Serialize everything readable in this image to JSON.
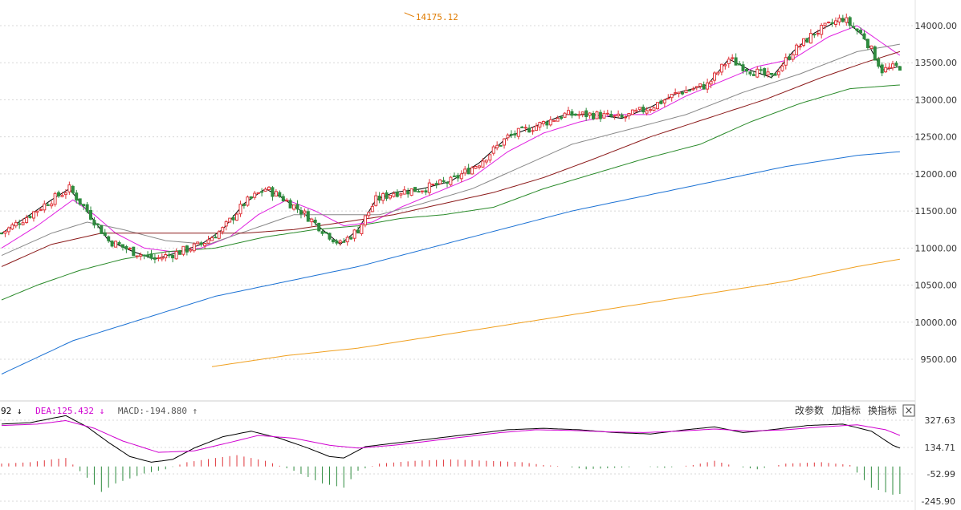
{
  "chart_data": [
    {
      "type": "candlestick",
      "ylim": [
        9000,
        14300
      ],
      "y_ticks": [
        {
          "value": 14000,
          "label": "14000.00"
        },
        {
          "value": 13500,
          "label": "13500.00"
        },
        {
          "value": 13000,
          "label": "13000.00"
        },
        {
          "value": 12500,
          "label": "12500.00"
        },
        {
          "value": 12000,
          "label": "12000.00"
        },
        {
          "value": 11500,
          "label": "11500.00"
        },
        {
          "value": 11000,
          "label": "11000.00"
        },
        {
          "value": 10500,
          "label": "10500.00"
        },
        {
          "value": 10000,
          "label": "10000.00"
        },
        {
          "value": 9500,
          "label": "9500.00"
        }
      ],
      "grid": true,
      "colors": {
        "up": "#e0353b",
        "down": "#2e8b3e"
      },
      "annotation": {
        "label": "14175.12",
        "value": 14175.12,
        "bar_index": 113,
        "color": "#e07b00"
      },
      "ma_anchors": [
        {
          "name": "ma-5",
          "color": "#000000",
          "points": [
            [
              0,
              11200
            ],
            [
              8,
              11450
            ],
            [
              14,
              11650
            ],
            [
              19,
              11800
            ],
            [
              24,
              11500
            ],
            [
              30,
              11100
            ],
            [
              37,
              10950
            ],
            [
              43,
              10850
            ],
            [
              50,
              10950
            ],
            [
              56,
              11050
            ],
            [
              62,
              11250
            ],
            [
              68,
              11600
            ],
            [
              74,
              11800
            ],
            [
              78,
              11700
            ],
            [
              84,
              11500
            ],
            [
              90,
              11250
            ],
            [
              95,
              11050
            ],
            [
              100,
              11250
            ],
            [
              105,
              11650
            ],
            [
              110,
              11750
            ],
            [
              118,
              11800
            ],
            [
              126,
              11900
            ],
            [
              134,
              12150
            ],
            [
              142,
              12500
            ],
            [
              150,
              12650
            ],
            [
              158,
              12800
            ],
            [
              166,
              12800
            ],
            [
              174,
              12750
            ],
            [
              182,
              12900
            ],
            [
              190,
              13100
            ],
            [
              198,
              13200
            ],
            [
              204,
              13550
            ],
            [
              210,
              13400
            ],
            [
              216,
              13300
            ],
            [
              222,
              13650
            ],
            [
              228,
              13900
            ],
            [
              236,
              14100
            ],
            [
              242,
              13850
            ],
            [
              247,
              13400
            ],
            [
              252,
              13450
            ]
          ]
        },
        {
          "name": "ma-10",
          "color": "#e020e0",
          "points": [
            [
              0,
              11000
            ],
            [
              10,
              11300
            ],
            [
              20,
              11650
            ],
            [
              26,
              11450
            ],
            [
              32,
              11200
            ],
            [
              40,
              11000
            ],
            [
              48,
              10950
            ],
            [
              56,
              11000
            ],
            [
              64,
              11150
            ],
            [
              72,
              11450
            ],
            [
              80,
              11650
            ],
            [
              88,
              11500
            ],
            [
              96,
              11300
            ],
            [
              104,
              11350
            ],
            [
              112,
              11550
            ],
            [
              122,
              11750
            ],
            [
              132,
              11950
            ],
            [
              142,
              12300
            ],
            [
              152,
              12550
            ],
            [
              162,
              12700
            ],
            [
              172,
              12800
            ],
            [
              182,
              12800
            ],
            [
              192,
              13050
            ],
            [
              202,
              13250
            ],
            [
              212,
              13450
            ],
            [
              222,
              13550
            ],
            [
              232,
              13850
            ],
            [
              240,
              14000
            ],
            [
              246,
              13800
            ],
            [
              252,
              13600
            ]
          ]
        },
        {
          "name": "ma-20",
          "color": "#888888",
          "points": [
            [
              0,
              10900
            ],
            [
              14,
              11200
            ],
            [
              24,
              11350
            ],
            [
              34,
              11250
            ],
            [
              46,
              11100
            ],
            [
              58,
              11050
            ],
            [
              70,
              11250
            ],
            [
              82,
              11450
            ],
            [
              94,
              11450
            ],
            [
              106,
              11450
            ],
            [
              118,
              11600
            ],
            [
              132,
              11800
            ],
            [
              146,
              12100
            ],
            [
              160,
              12400
            ],
            [
              176,
              12600
            ],
            [
              192,
              12800
            ],
            [
              208,
              13100
            ],
            [
              224,
              13350
            ],
            [
              240,
              13650
            ],
            [
              252,
              13750
            ]
          ]
        },
        {
          "name": "ma-30",
          "color": "#8b1a1a",
          "points": [
            [
              0,
              10750
            ],
            [
              14,
              11050
            ],
            [
              28,
              11200
            ],
            [
              40,
              11200
            ],
            [
              54,
              11200
            ],
            [
              68,
              11200
            ],
            [
              82,
              11250
            ],
            [
              96,
              11350
            ],
            [
              110,
              11450
            ],
            [
              124,
              11600
            ],
            [
              138,
              11750
            ],
            [
              152,
              11950
            ],
            [
              166,
              12200
            ],
            [
              182,
              12500
            ],
            [
              198,
              12750
            ],
            [
              214,
              13000
            ],
            [
              230,
              13300
            ],
            [
              242,
              13500
            ],
            [
              252,
              13650
            ]
          ]
        },
        {
          "name": "ma-60",
          "color": "#2a8a2a",
          "points": [
            [
              0,
              10300
            ],
            [
              10,
              10500
            ],
            [
              22,
              10700
            ],
            [
              34,
              10850
            ],
            [
              46,
              10950
            ],
            [
              60,
              11000
            ],
            [
              74,
              11150
            ],
            [
              88,
              11250
            ],
            [
              100,
              11300
            ],
            [
              112,
              11400
            ],
            [
              124,
              11450
            ],
            [
              138,
              11550
            ],
            [
              152,
              11800
            ],
            [
              166,
              12000
            ],
            [
              180,
              12200
            ],
            [
              196,
              12400
            ],
            [
              210,
              12700
            ],
            [
              224,
              12950
            ],
            [
              238,
              13150
            ],
            [
              252,
              13200
            ]
          ]
        },
        {
          "name": "ma-120",
          "color": "#1c72d4",
          "points": [
            [
              0,
              9300
            ],
            [
              20,
              9750
            ],
            [
              40,
              10050
            ],
            [
              60,
              10350
            ],
            [
              80,
              10550
            ],
            [
              100,
              10750
            ],
            [
              120,
              11000
            ],
            [
              140,
              11250
            ],
            [
              160,
              11500
            ],
            [
              180,
              11700
            ],
            [
              200,
              11900
            ],
            [
              220,
              12100
            ],
            [
              240,
              12250
            ],
            [
              252,
              12300
            ]
          ]
        },
        {
          "name": "ma-250",
          "color": "#f0a020",
          "points": [
            [
              59,
              9400
            ],
            [
              80,
              9550
            ],
            [
              100,
              9650
            ],
            [
              120,
              9800
            ],
            [
              140,
              9950
            ],
            [
              160,
              10100
            ],
            [
              180,
              10250
            ],
            [
              200,
              10400
            ],
            [
              220,
              10550
            ],
            [
              240,
              10750
            ],
            [
              252,
              10850
            ]
          ]
        }
      ]
    },
    {
      "type": "macd",
      "ylim": [
        -260,
        400
      ],
      "y_ticks": [
        {
          "value": 327.63,
          "label": "327.63"
        },
        {
          "value": 134.71,
          "label": "134.71"
        },
        {
          "value": -52.99,
          "label": "-52.99"
        },
        {
          "value": -245.9,
          "label": "-245.90"
        }
      ],
      "legend": [
        {
          "text": "92 ↓",
          "color": "#000000"
        },
        {
          "text": "DEA:125.432 ↓",
          "color": "#d000d0"
        },
        {
          "text": "MACD:-194.880 ↑",
          "color": "#555555"
        }
      ],
      "diff_anchors": [
        [
          0,
          300
        ],
        [
          8,
          310
        ],
        [
          14,
          340
        ],
        [
          18,
          360
        ],
        [
          24,
          280
        ],
        [
          30,
          170
        ],
        [
          36,
          70
        ],
        [
          42,
          30
        ],
        [
          48,
          50
        ],
        [
          54,
          130
        ],
        [
          62,
          210
        ],
        [
          70,
          250
        ],
        [
          78,
          200
        ],
        [
          86,
          130
        ],
        [
          92,
          70
        ],
        [
          96,
          60
        ],
        [
          102,
          140
        ],
        [
          112,
          170
        ],
        [
          122,
          200
        ],
        [
          132,
          230
        ],
        [
          142,
          260
        ],
        [
          152,
          270
        ],
        [
          162,
          260
        ],
        [
          172,
          240
        ],
        [
          182,
          230
        ],
        [
          192,
          260
        ],
        [
          200,
          280
        ],
        [
          208,
          240
        ],
        [
          216,
          260
        ],
        [
          226,
          290
        ],
        [
          236,
          300
        ],
        [
          244,
          250
        ],
        [
          250,
          150
        ],
        [
          254,
          110
        ]
      ],
      "dea_anchors": [
        [
          0,
          290
        ],
        [
          10,
          300
        ],
        [
          18,
          325
        ],
        [
          26,
          270
        ],
        [
          34,
          180
        ],
        [
          44,
          100
        ],
        [
          54,
          110
        ],
        [
          64,
          170
        ],
        [
          72,
          220
        ],
        [
          82,
          200
        ],
        [
          92,
          150
        ],
        [
          100,
          130
        ],
        [
          110,
          150
        ],
        [
          120,
          180
        ],
        [
          130,
          210
        ],
        [
          140,
          240
        ],
        [
          150,
          260
        ],
        [
          160,
          255
        ],
        [
          170,
          245
        ],
        [
          180,
          240
        ],
        [
          190,
          250
        ],
        [
          200,
          265
        ],
        [
          210,
          250
        ],
        [
          220,
          260
        ],
        [
          230,
          280
        ],
        [
          240,
          295
        ],
        [
          248,
          260
        ],
        [
          254,
          200
        ]
      ],
      "macd_anchors": [
        [
          0,
          20
        ],
        [
          8,
          30
        ],
        [
          14,
          50
        ],
        [
          18,
          60
        ],
        [
          24,
          -80
        ],
        [
          28,
          -180
        ],
        [
          32,
          -120
        ],
        [
          40,
          -50
        ],
        [
          46,
          -20
        ],
        [
          52,
          30
        ],
        [
          60,
          60
        ],
        [
          66,
          80
        ],
        [
          74,
          40
        ],
        [
          82,
          -30
        ],
        [
          90,
          -120
        ],
        [
          96,
          -150
        ],
        [
          100,
          -30
        ],
        [
          106,
          20
        ],
        [
          116,
          40
        ],
        [
          126,
          50
        ],
        [
          136,
          40
        ],
        [
          146,
          30
        ],
        [
          152,
          10
        ],
        [
          158,
          0
        ],
        [
          164,
          -20
        ],
        [
          172,
          -10
        ],
        [
          180,
          0
        ],
        [
          186,
          -10
        ],
        [
          194,
          10
        ],
        [
          200,
          40
        ],
        [
          206,
          0
        ],
        [
          212,
          -20
        ],
        [
          220,
          20
        ],
        [
          230,
          30
        ],
        [
          238,
          10
        ],
        [
          244,
          -150
        ],
        [
          250,
          -200
        ],
        [
          254,
          -190
        ]
      ]
    }
  ],
  "toolbar": {
    "btn_change_params": "改参数",
    "btn_add_indicator": "加指标",
    "btn_switch_indicator": "换指标",
    "close_icon": "×"
  },
  "icons": {
    "close": "close-icon",
    "arrow-down": "arrow-down-icon",
    "arrow-up": "arrow-up-icon"
  }
}
